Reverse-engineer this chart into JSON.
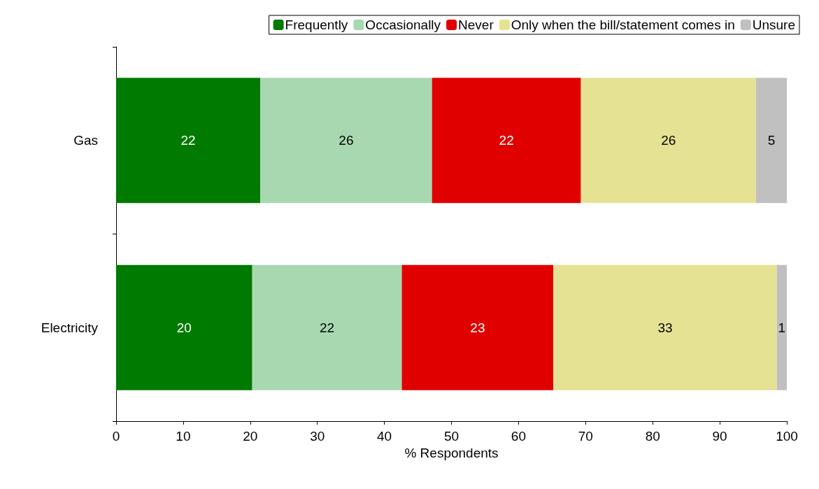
{
  "chart_data": {
    "type": "bar",
    "orientation": "horizontal",
    "stacked": true,
    "categories": [
      "Gas",
      "Electricity"
    ],
    "series": [
      {
        "name": "Frequently",
        "color": "#007a00",
        "values": [
          21.5,
          20.3
        ],
        "value_labels": [
          "22",
          "20"
        ]
      },
      {
        "name": "Occasionally",
        "color": "#a8d8b0",
        "values": [
          25.6,
          22.3
        ],
        "value_labels": [
          "26",
          "22"
        ]
      },
      {
        "name": "Never",
        "color": "#e00000",
        "values": [
          22.2,
          22.6
        ],
        "value_labels": [
          "22",
          "23"
        ]
      },
      {
        "name": "Only when the bill/statement comes in",
        "color": "#e6e294",
        "values": [
          26.1,
          33.3
        ],
        "value_labels": [
          "26",
          "33"
        ]
      },
      {
        "name": "Unsure",
        "color": "#c0c0c0",
        "values": [
          4.6,
          1.5
        ],
        "value_labels": [
          "5",
          "1"
        ]
      }
    ],
    "xlabel": "% Respondents",
    "xlim": [
      0,
      100
    ],
    "xticks": [
      0,
      10,
      20,
      30,
      40,
      50,
      60,
      70,
      80,
      90,
      100
    ],
    "grid": false,
    "legend": "top"
  }
}
